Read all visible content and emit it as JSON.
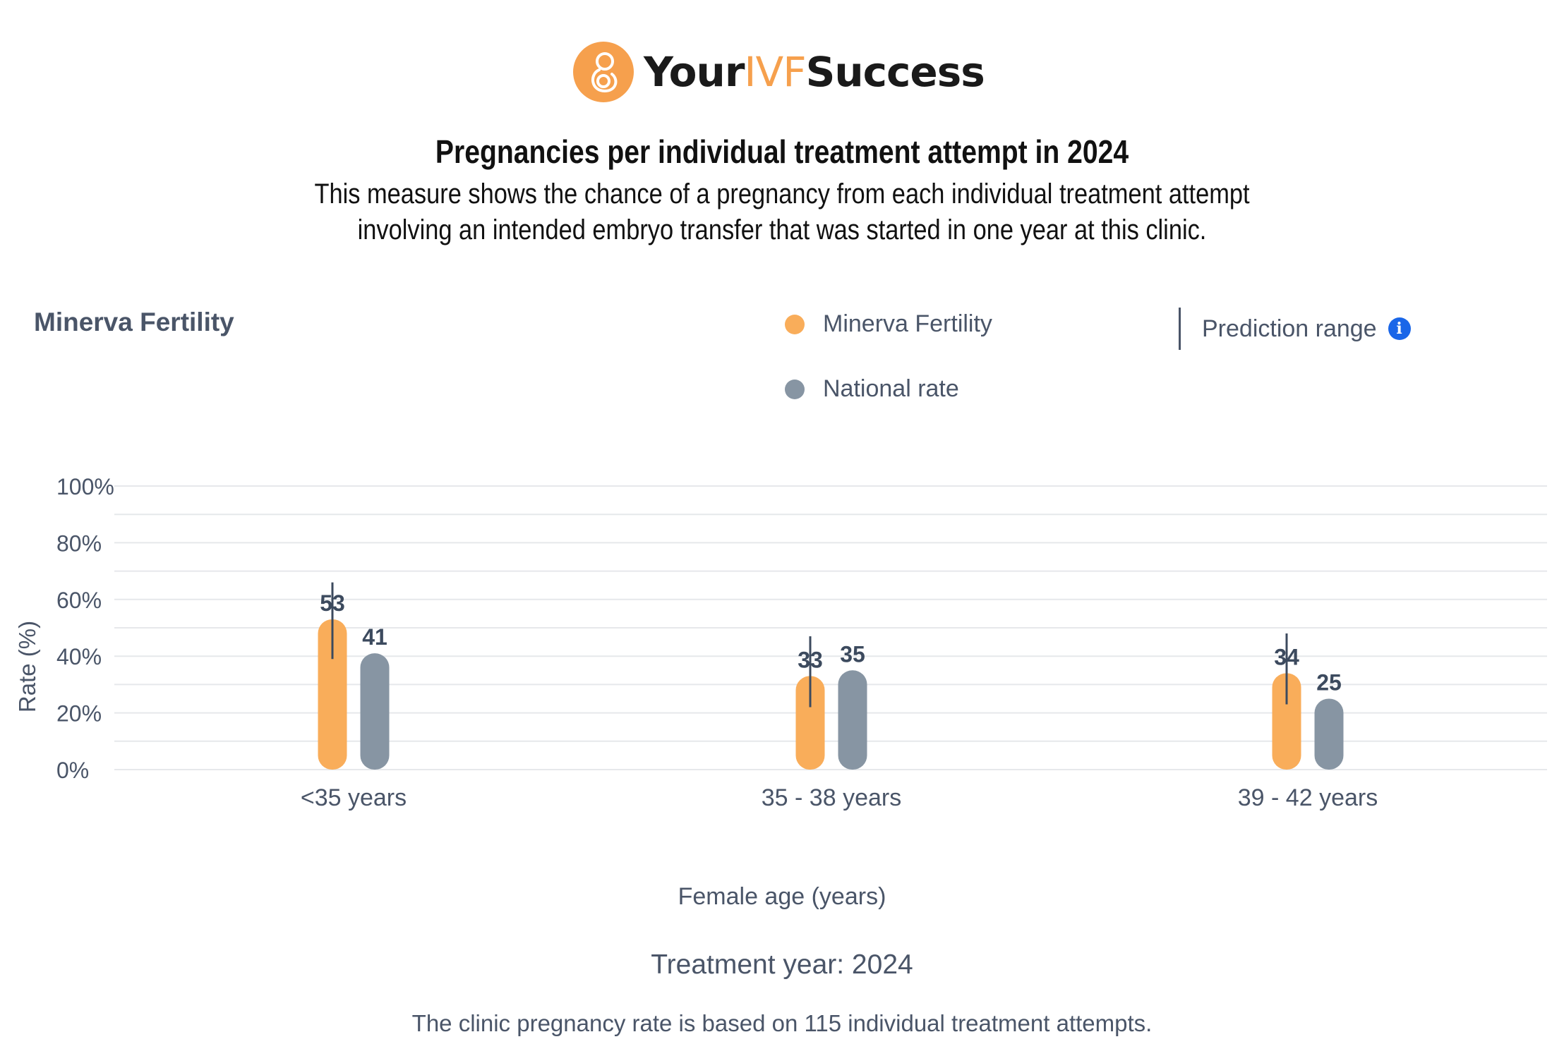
{
  "brand": {
    "your": "Your",
    "ivf": "IVF",
    "success": "Success"
  },
  "header": {
    "title": "Pregnancies per individual treatment attempt in 2024",
    "subtitle_line1": "This measure shows the chance of a pregnancy from each individual treatment attempt",
    "subtitle_line2": "involving an intended embryo transfer that was started in one year at this clinic."
  },
  "clinic_name": "Minerva Fertility",
  "legend": {
    "clinic": "Minerva Fertility",
    "national": "National rate",
    "prediction": "Prediction range"
  },
  "colors": {
    "clinic": "#f9ad5a",
    "national": "#8795a3",
    "accent": "#1a66e8",
    "text": "#4a5568"
  },
  "chart_data": {
    "type": "bar",
    "title": "Pregnancies per individual treatment attempt in 2024",
    "xlabel": "Female age (years)",
    "ylabel": "Rate (%)",
    "ylim": [
      0,
      100
    ],
    "yticks": [
      "0%",
      "20%",
      "40%",
      "60%",
      "80%",
      "100%"
    ],
    "categories": [
      "<35 years",
      "35 - 38 years",
      "39 - 42 years"
    ],
    "series": [
      {
        "name": "Minerva Fertility",
        "values": [
          53,
          33,
          34
        ]
      },
      {
        "name": "National rate",
        "values": [
          41,
          35,
          25
        ]
      }
    ],
    "prediction_ranges": [
      [
        39,
        66
      ],
      [
        22,
        47
      ],
      [
        23,
        48
      ]
    ],
    "grid": true,
    "legend_position": "top-right"
  },
  "footer": {
    "treatment_year": "Treatment year: 2024",
    "note": "The clinic pregnancy rate is based on 115 individual treatment attempts."
  }
}
